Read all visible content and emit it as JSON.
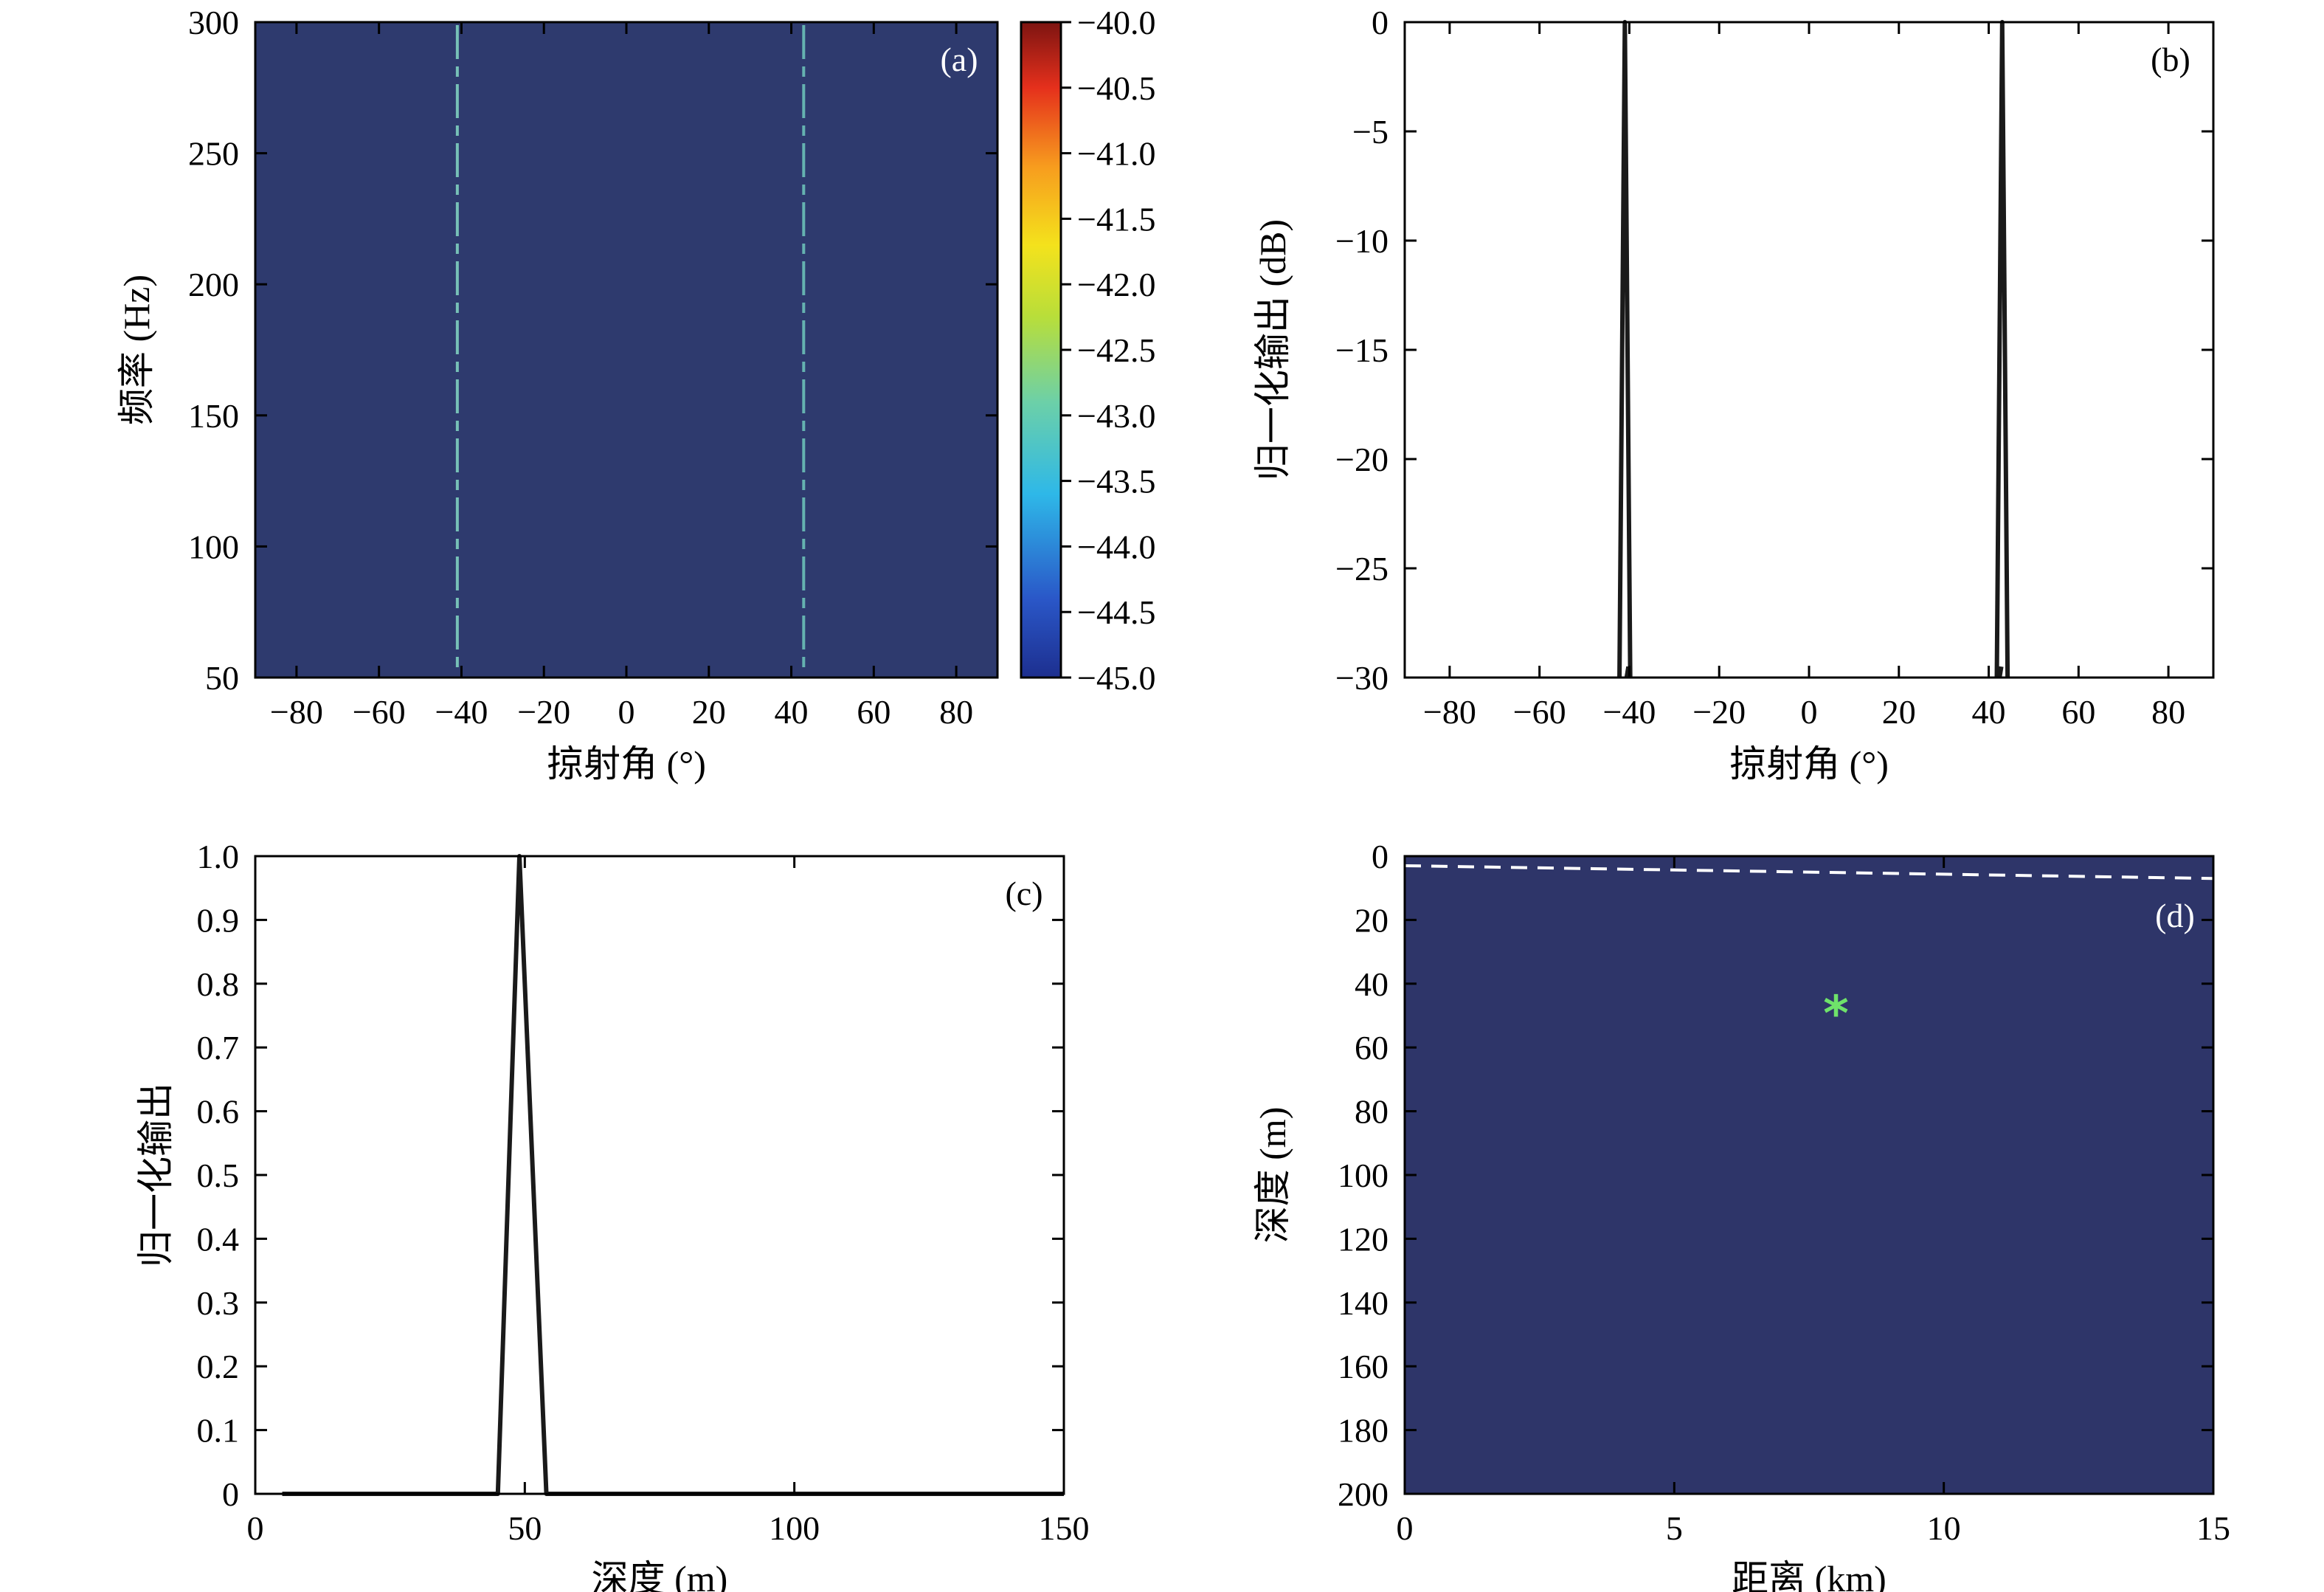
{
  "chart_data": [
    {
      "id": "a",
      "type": "heatmap",
      "panel_label": "(a)",
      "xlabel": "掠射角 (°)",
      "ylabel": "频率 (Hz)",
      "xlim": [
        -90,
        90
      ],
      "ylim": [
        50,
        300
      ],
      "xticks": [
        -80,
        -60,
        -40,
        -20,
        0,
        20,
        40,
        60,
        80
      ],
      "yticks": [
        50,
        100,
        150,
        200,
        250,
        300
      ],
      "background_color": "#2e3a6e",
      "colorbar": {
        "min": -45.0,
        "max": -40.0,
        "ticks": [
          "−40.0",
          "−40.5",
          "−41.0",
          "−41.5",
          "−42.0",
          "−42.5",
          "−43.0",
          "−43.5",
          "−44.0",
          "−44.5",
          "−45.0"
        ]
      },
      "ridges": [
        {
          "angle": -41,
          "color": "#7fd0c0"
        },
        {
          "angle": 43,
          "color": "#6cc0b8"
        }
      ]
    },
    {
      "id": "b",
      "type": "line",
      "panel_label": "(b)",
      "xlabel": "掠射角 (°)",
      "ylabel": "归一化输出 (dB)",
      "xlim": [
        -90,
        90
      ],
      "ylim": [
        -30,
        0
      ],
      "xticks": [
        -80,
        -60,
        -40,
        -20,
        0,
        20,
        40,
        60,
        80
      ],
      "yticks": [
        0,
        -5,
        -10,
        -15,
        -20,
        -25,
        -30
      ],
      "series": [
        {
          "x": [
            -42.2,
            -41.0,
            -39.8
          ],
          "y": [
            -30,
            0,
            -30
          ]
        },
        {
          "x": [
            -40.6,
            -40.2
          ],
          "y": [
            -30,
            -29.5
          ]
        },
        {
          "x": [
            41.8,
            43.0,
            44.2
          ],
          "y": [
            -30,
            0,
            -30
          ]
        },
        {
          "x": [
            42.4,
            42.8
          ],
          "y": [
            -30,
            -29.5
          ]
        }
      ]
    },
    {
      "id": "c",
      "type": "line",
      "panel_label": "(c)",
      "xlabel": "深度 (m)",
      "ylabel": "归一化输出",
      "xlim": [
        0,
        150
      ],
      "ylim": [
        0,
        1
      ],
      "xticks": [
        0,
        50,
        100,
        150
      ],
      "yticks": [
        0,
        0.1,
        0.2,
        0.3,
        0.4,
        0.5,
        0.6,
        0.7,
        0.8,
        0.9,
        1.0
      ],
      "ytick_labels": [
        "0",
        "0.1",
        "0.2",
        "0.3",
        "0.4",
        "0.5",
        "0.6",
        "0.7",
        "0.8",
        "0.9",
        "1.0"
      ],
      "series": [
        {
          "x": [
            5,
            45,
            49,
            54,
            150
          ],
          "y": [
            0,
            0,
            1,
            0,
            0
          ]
        }
      ]
    },
    {
      "id": "d",
      "type": "heatmap",
      "panel_label": "(d)",
      "xlabel": "距离 (km)",
      "ylabel": "深度 (m)",
      "xlim": [
        0,
        15
      ],
      "ylim": [
        0,
        200
      ],
      "xticks": [
        0,
        5,
        10,
        15
      ],
      "yticks": [
        0,
        20,
        40,
        60,
        80,
        100,
        120,
        140,
        160,
        180,
        200
      ],
      "background_color": "#2e3569",
      "dashed_line": {
        "x": [
          0,
          15
        ],
        "y": [
          3,
          7
        ],
        "color": "#ffffff"
      },
      "marker": {
        "x": 8.0,
        "y": 50,
        "symbol": "*",
        "color": "#6fe36a"
      }
    }
  ]
}
